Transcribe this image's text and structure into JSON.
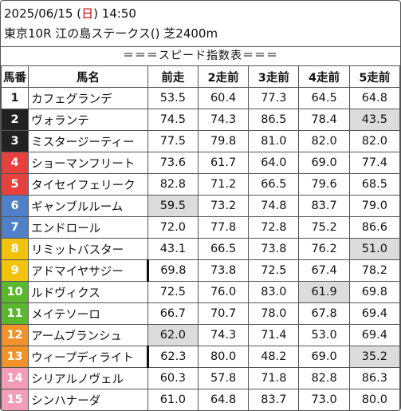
{
  "header": {
    "datetime_prefix": "2025/06/15 (",
    "weekday": "日",
    "datetime_suffix": ") 14:50",
    "race": "東京10R 江の島ステークス() 芝2400m"
  },
  "banner": "＝＝＝スピード指数表＝＝＝",
  "columns": [
    "馬番",
    "馬名",
    "前走",
    "2走前",
    "3走前",
    "4走前",
    "5走前"
  ],
  "colors": {
    "gate1": "#ffffff",
    "gate2": "#222222",
    "gate3": "#e8403c",
    "gate4": "#e8403c",
    "gate5": "#4f80c8",
    "gate6": "#4f80c8",
    "gate7": "#f3c20c",
    "gate8": "#f3c20c",
    "highlight": "#dcdcdc"
  },
  "rows": [
    {
      "no": "1",
      "name": "カフェグランデ",
      "v": [
        "53.5",
        "60.4",
        "77.3",
        "64.5",
        "64.8"
      ],
      "hl": [],
      "bg": "#ffffff",
      "dark": true
    },
    {
      "no": "2",
      "name": "ヴォランテ",
      "v": [
        "74.5",
        "74.3",
        "86.5",
        "78.4",
        "43.5"
      ],
      "hl": [
        4
      ],
      "bg": "#222222",
      "dark": false
    },
    {
      "no": "3",
      "name": "ミスタージーティー",
      "v": [
        "77.5",
        "79.8",
        "81.0",
        "82.0",
        "82.0"
      ],
      "hl": [],
      "bg": "#222222",
      "dark": false
    },
    {
      "no": "4",
      "name": "ショーマンフリート",
      "v": [
        "73.6",
        "61.7",
        "64.0",
        "69.0",
        "77.4"
      ],
      "hl": [],
      "bg": "#e8403c",
      "dark": false
    },
    {
      "no": "5",
      "name": "タイセイフェリーク",
      "v": [
        "82.8",
        "71.2",
        "66.5",
        "79.6",
        "68.5"
      ],
      "hl": [],
      "bg": "#e8403c",
      "dark": false
    },
    {
      "no": "6",
      "name": "ギャンブルルーム",
      "v": [
        "59.5",
        "73.2",
        "74.8",
        "83.7",
        "79.0"
      ],
      "hl": [
        0
      ],
      "bg": "#4f80c8",
      "dark": false
    },
    {
      "no": "7",
      "name": "エンドロール",
      "v": [
        "72.0",
        "77.8",
        "72.8",
        "75.2",
        "86.6"
      ],
      "hl": [],
      "bg": "#4f80c8",
      "dark": false
    },
    {
      "no": "8",
      "name": "リミットバスター",
      "v": [
        "43.1",
        "66.5",
        "73.8",
        "76.2",
        "51.0"
      ],
      "hl": [
        4
      ],
      "bg": "#f3c20c",
      "dark": false
    },
    {
      "no": "9",
      "name": "アドマイヤサジー",
      "v": [
        "69.8",
        "73.8",
        "72.5",
        "67.4",
        "78.2"
      ],
      "hl": [],
      "bg": "#f3c20c",
      "dark": false,
      "bar": true
    },
    {
      "no": "10",
      "name": "ルドヴィクス",
      "v": [
        "72.5",
        "76.0",
        "83.0",
        "61.9",
        "69.8"
      ],
      "hl": [
        3
      ],
      "bg": "#5ab82e",
      "dark": false
    },
    {
      "no": "11",
      "name": "メイテソーロ",
      "v": [
        "66.7",
        "70.7",
        "78.0",
        "67.8",
        "69.4"
      ],
      "hl": [],
      "bg": "#5ab82e",
      "dark": false
    },
    {
      "no": "12",
      "name": "アームブランシュ",
      "v": [
        "62.0",
        "74.3",
        "71.4",
        "53.0",
        "69.4"
      ],
      "hl": [
        0
      ],
      "bg": "#f0912a",
      "dark": false
    },
    {
      "no": "13",
      "name": "ウィープディライト",
      "v": [
        "62.3",
        "80.0",
        "48.2",
        "69.0",
        "35.2"
      ],
      "hl": [
        4
      ],
      "bg": "#f0912a",
      "dark": false,
      "bar": true
    },
    {
      "no": "14",
      "name": "シリアルノヴェル",
      "v": [
        "60.3",
        "57.8",
        "71.8",
        "82.8",
        "86.3"
      ],
      "hl": [],
      "bg": "#f29cb6",
      "dark": false
    },
    {
      "no": "15",
      "name": "シンハナーダ",
      "v": [
        "61.0",
        "64.8",
        "83.7",
        "73.0",
        "80.0"
      ],
      "hl": [],
      "bg": "#f29cb6",
      "dark": false
    }
  ]
}
